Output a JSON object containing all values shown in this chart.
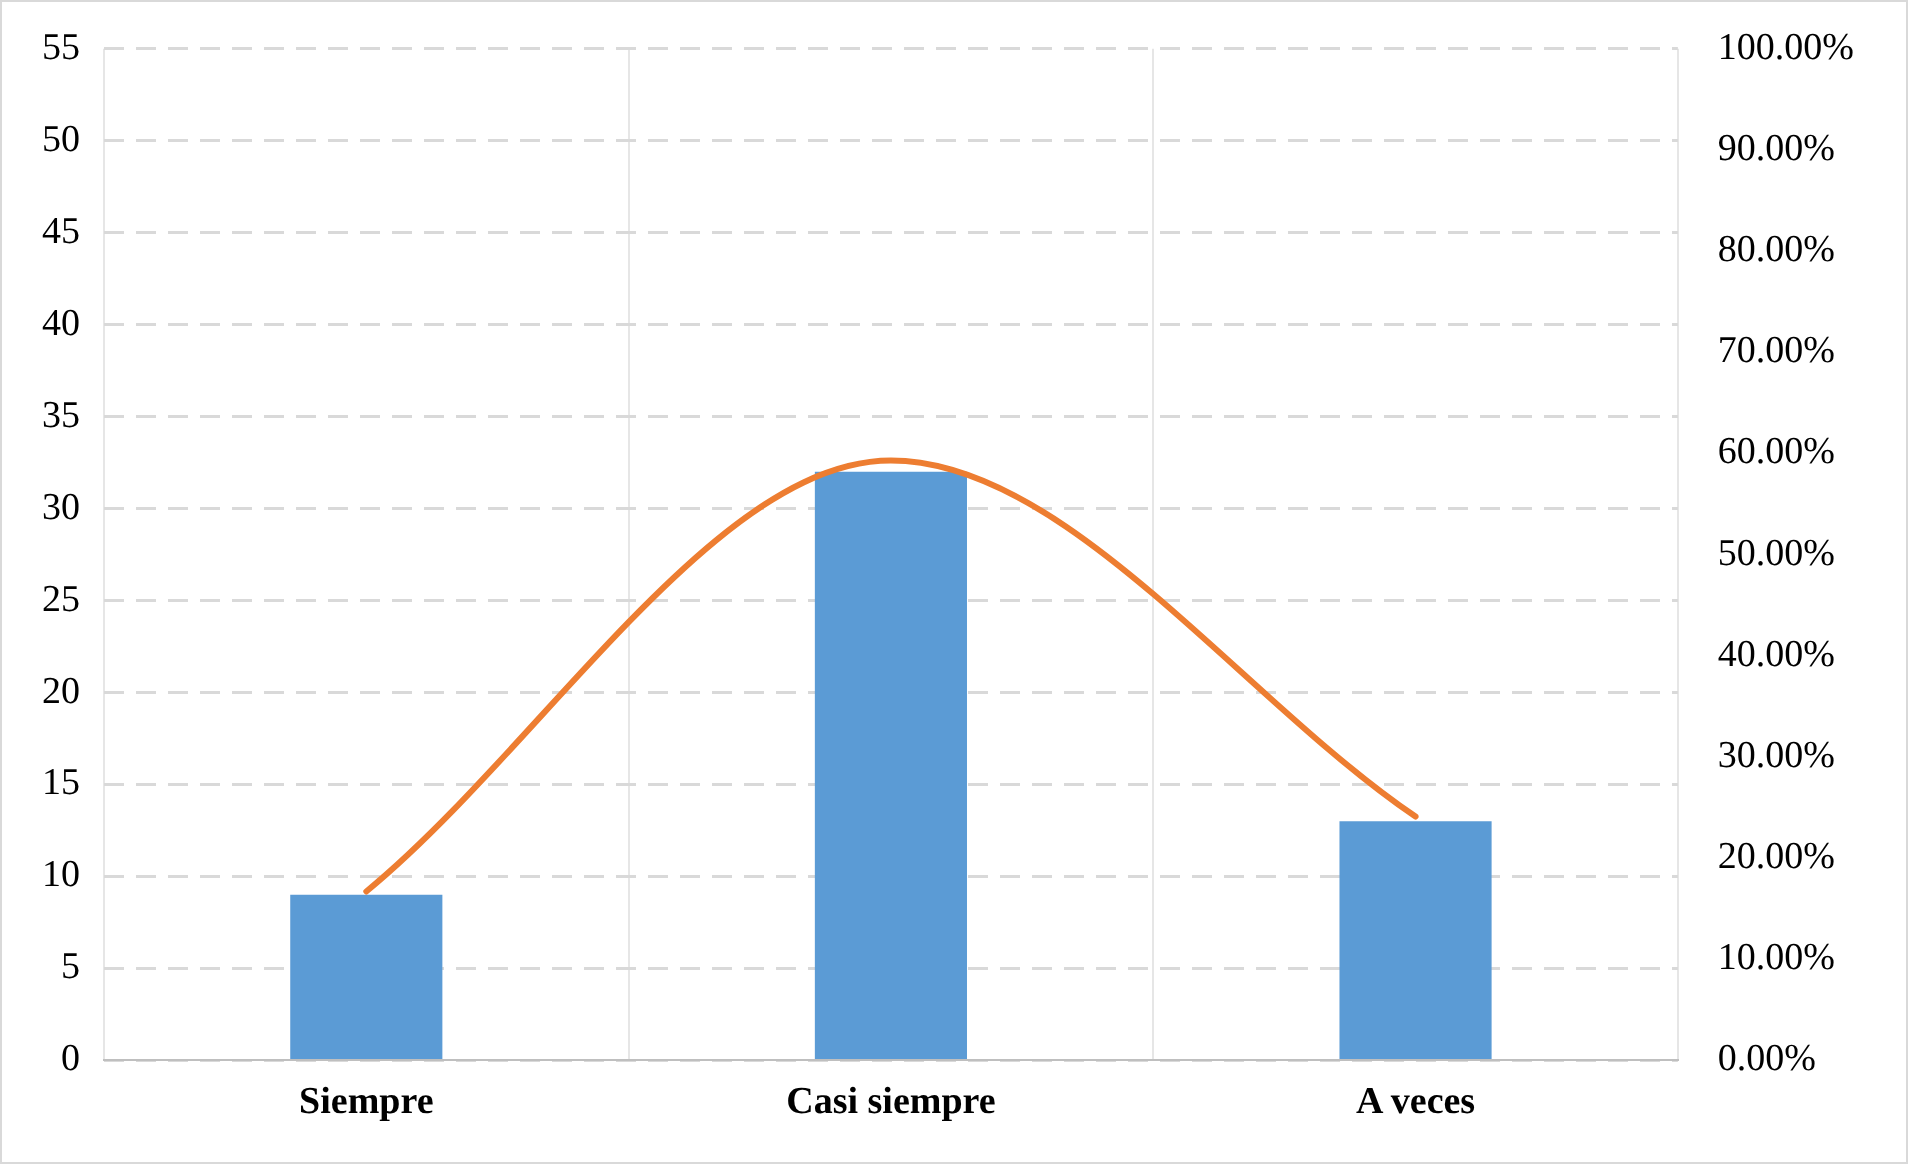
{
  "chart_data": {
    "type": "bar",
    "categories": [
      "Siempre",
      "Casi siempre",
      "A veces"
    ],
    "series": [
      {
        "color": "#5b9bd5",
        "values": [
          9,
          32,
          13
        ]
      },
      {
        "type": "line",
        "axis": "y2",
        "color": "#ed7d31",
        "values": [
          16.7,
          59.3,
          24.1
        ]
      }
    ],
    "ylim": [
      0,
      55
    ],
    "yticks": [
      0,
      5,
      10,
      15,
      20,
      25,
      30,
      35,
      40,
      45,
      50,
      55
    ],
    "y2lim": [
      0,
      100
    ],
    "y2ticks": [
      {
        "value": 0,
        "label": "0.00%"
      },
      {
        "value": 10,
        "label": "10.00%"
      },
      {
        "value": 20,
        "label": "20.00%"
      },
      {
        "value": 30,
        "label": "30.00%"
      },
      {
        "value": 40,
        "label": "40.00%"
      },
      {
        "value": 50,
        "label": "50.00%"
      },
      {
        "value": 60,
        "label": "60.00%"
      },
      {
        "value": 70,
        "label": "70.00%"
      },
      {
        "value": 80,
        "label": "80.00%"
      },
      {
        "value": 90,
        "label": "90.00%"
      },
      {
        "value": 100,
        "label": "100.00%"
      }
    ],
    "grid": true,
    "legend": false,
    "marker": "none"
  }
}
